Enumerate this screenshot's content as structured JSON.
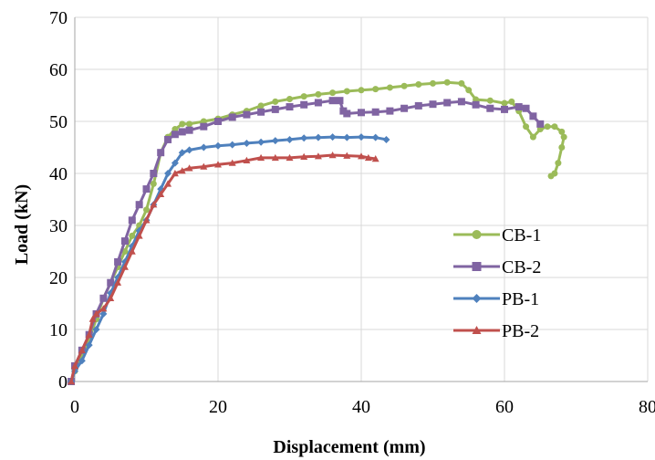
{
  "chart_data": {
    "type": "line",
    "title": "",
    "xlabel": "Displacement (mm)",
    "ylabel": "Load (kN)",
    "xlim": [
      0,
      80
    ],
    "ylim": [
      0,
      70
    ],
    "x_ticks": [
      "0",
      "20",
      "40",
      "60",
      "80"
    ],
    "y_ticks": [
      "0",
      "10",
      "20",
      "30",
      "40",
      "50",
      "60",
      "70"
    ],
    "grid": true,
    "legend_position": "right",
    "series": [
      {
        "name": "CB-1",
        "color": "#9BBB59",
        "marker": "circle",
        "points": [
          [
            -0.5,
            0
          ],
          [
            0,
            2
          ],
          [
            1,
            5
          ],
          [
            2,
            8
          ],
          [
            3,
            12
          ],
          [
            4,
            16
          ],
          [
            5,
            19
          ],
          [
            6,
            22
          ],
          [
            7,
            25
          ],
          [
            8,
            28
          ],
          [
            9,
            30
          ],
          [
            10,
            33
          ],
          [
            11,
            38
          ],
          [
            12,
            44
          ],
          [
            13,
            47
          ],
          [
            14,
            48.5
          ],
          [
            15,
            49.5
          ],
          [
            16,
            49.5
          ],
          [
            18,
            50
          ],
          [
            20,
            50.5
          ],
          [
            22,
            51.3
          ],
          [
            24,
            52
          ],
          [
            26,
            53
          ],
          [
            28,
            53.8
          ],
          [
            30,
            54.3
          ],
          [
            32,
            54.8
          ],
          [
            34,
            55.2
          ],
          [
            36,
            55.5
          ],
          [
            38,
            55.8
          ],
          [
            40,
            56
          ],
          [
            42,
            56.2
          ],
          [
            44,
            56.5
          ],
          [
            46,
            56.8
          ],
          [
            48,
            57.1
          ],
          [
            50,
            57.3
          ],
          [
            52,
            57.5
          ],
          [
            54,
            57.3
          ],
          [
            55,
            56
          ],
          [
            56,
            54.2
          ],
          [
            58,
            54
          ],
          [
            60,
            53.5
          ],
          [
            61,
            53.8
          ],
          [
            62,
            52
          ],
          [
            63,
            49
          ],
          [
            64,
            47
          ],
          [
            65,
            48.5
          ],
          [
            66,
            49
          ],
          [
            67,
            49
          ],
          [
            68,
            48
          ],
          [
            68.3,
            47
          ],
          [
            68,
            45
          ],
          [
            67.5,
            42
          ],
          [
            67,
            40
          ],
          [
            66.5,
            39.5
          ]
        ]
      },
      {
        "name": "CB-2",
        "color": "#8064A2",
        "marker": "square",
        "points": [
          [
            -0.5,
            0
          ],
          [
            0,
            3
          ],
          [
            1,
            6
          ],
          [
            2,
            9
          ],
          [
            3,
            13
          ],
          [
            4,
            16
          ],
          [
            5,
            19
          ],
          [
            6,
            23
          ],
          [
            7,
            27
          ],
          [
            8,
            31
          ],
          [
            9,
            34
          ],
          [
            10,
            37
          ],
          [
            11,
            40
          ],
          [
            12,
            44
          ],
          [
            13,
            46.5
          ],
          [
            14,
            47.5
          ],
          [
            15,
            48
          ],
          [
            16,
            48.3
          ],
          [
            18,
            49
          ],
          [
            20,
            50
          ],
          [
            22,
            50.8
          ],
          [
            24,
            51.3
          ],
          [
            26,
            51.8
          ],
          [
            28,
            52.3
          ],
          [
            30,
            52.8
          ],
          [
            32,
            53.2
          ],
          [
            34,
            53.6
          ],
          [
            36,
            54
          ],
          [
            37,
            54
          ],
          [
            37.5,
            52
          ],
          [
            38,
            51.5
          ],
          [
            40,
            51.7
          ],
          [
            42,
            51.8
          ],
          [
            44,
            52
          ],
          [
            46,
            52.5
          ],
          [
            48,
            53
          ],
          [
            50,
            53.3
          ],
          [
            52,
            53.6
          ],
          [
            54,
            53.8
          ],
          [
            56,
            53.2
          ],
          [
            58,
            52.5
          ],
          [
            60,
            52.3
          ],
          [
            62,
            52.8
          ],
          [
            63,
            52.5
          ],
          [
            64,
            51
          ],
          [
            65,
            49.5
          ]
        ]
      },
      {
        "name": "PB-1",
        "color": "#4F81BD",
        "marker": "diamond",
        "points": [
          [
            -0.5,
            0
          ],
          [
            0,
            2
          ],
          [
            1,
            4
          ],
          [
            2,
            7
          ],
          [
            3,
            10
          ],
          [
            4,
            13
          ],
          [
            5,
            17
          ],
          [
            6,
            20
          ],
          [
            7,
            23
          ],
          [
            8,
            26
          ],
          [
            9,
            29
          ],
          [
            10,
            31
          ],
          [
            11,
            34
          ],
          [
            12,
            37
          ],
          [
            13,
            40
          ],
          [
            14,
            42
          ],
          [
            15,
            44
          ],
          [
            16,
            44.5
          ],
          [
            18,
            45
          ],
          [
            20,
            45.3
          ],
          [
            22,
            45.5
          ],
          [
            24,
            45.8
          ],
          [
            26,
            46
          ],
          [
            28,
            46.3
          ],
          [
            30,
            46.5
          ],
          [
            32,
            46.8
          ],
          [
            34,
            46.9
          ],
          [
            36,
            47
          ],
          [
            38,
            46.9
          ],
          [
            40,
            47
          ],
          [
            42,
            46.9
          ],
          [
            43.5,
            46.5
          ]
        ]
      },
      {
        "name": "PB-2",
        "color": "#C0504D",
        "marker": "triangle",
        "points": [
          [
            -0.5,
            0
          ],
          [
            0,
            3
          ],
          [
            1,
            6
          ],
          [
            2,
            9
          ],
          [
            2.5,
            12
          ],
          [
            3,
            13
          ],
          [
            4,
            14
          ],
          [
            5,
            16
          ],
          [
            6,
            19
          ],
          [
            7,
            22
          ],
          [
            8,
            25
          ],
          [
            9,
            28
          ],
          [
            10,
            31
          ],
          [
            11,
            34
          ],
          [
            12,
            36
          ],
          [
            13,
            38
          ],
          [
            14,
            40
          ],
          [
            15,
            40.5
          ],
          [
            16,
            41
          ],
          [
            18,
            41.3
          ],
          [
            20,
            41.7
          ],
          [
            22,
            42
          ],
          [
            24,
            42.5
          ],
          [
            26,
            43
          ],
          [
            28,
            43
          ],
          [
            30,
            43
          ],
          [
            32,
            43.2
          ],
          [
            34,
            43.3
          ],
          [
            36,
            43.5
          ],
          [
            38,
            43.4
          ],
          [
            40,
            43.3
          ],
          [
            41,
            43
          ],
          [
            42,
            42.8
          ]
        ]
      }
    ]
  }
}
